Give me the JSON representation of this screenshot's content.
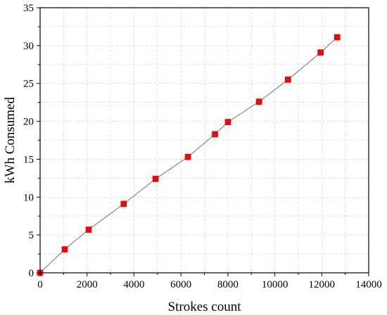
{
  "chart_data": {
    "type": "line",
    "title": "",
    "xlabel": "Strokes count",
    "ylabel": "kWh Consumed",
    "xlim": [
      0,
      14000
    ],
    "ylim": [
      0,
      35
    ],
    "x_ticks": [
      0,
      2000,
      4000,
      6000,
      8000,
      10000,
      12000,
      14000
    ],
    "y_ticks": [
      0,
      5,
      10,
      15,
      20,
      25,
      30,
      35
    ],
    "grid": "dashed minor and major gridlines",
    "legend": "none",
    "marker": "square",
    "series": [
      {
        "marker_color": "#ff0000",
        "line_color": "#707070",
        "x": [
          0,
          1050,
          2070,
          3560,
          4920,
          6300,
          7450,
          8000,
          9330,
          10560,
          11950,
          12660
        ],
        "y": [
          0,
          3.1,
          5.7,
          9.1,
          12.4,
          15.3,
          18.3,
          19.9,
          22.6,
          25.5,
          29.1,
          31.1
        ]
      }
    ]
  }
}
